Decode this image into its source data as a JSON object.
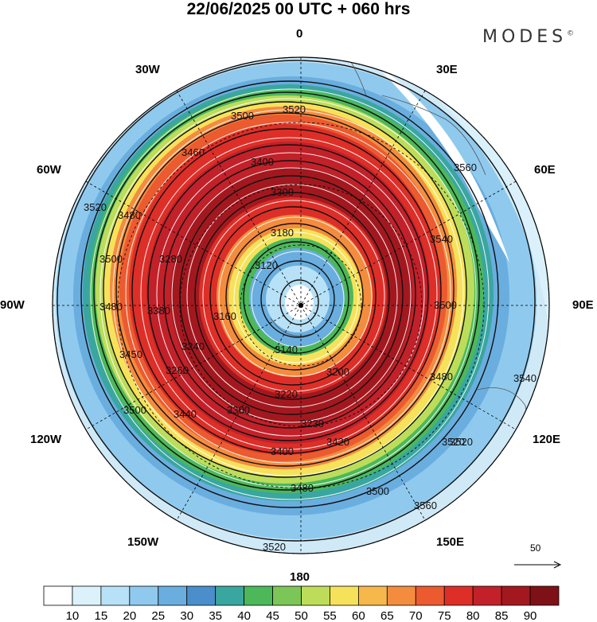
{
  "title": "22/06/2025  00 UTC  + 060 hrs",
  "brand": "MODES",
  "brand_mark": "©",
  "longitude_labels": {
    "lon_0": "0",
    "lon_30e": "30E",
    "lon_60e": "60E",
    "lon_90e": "90E",
    "lon_120e": "120E",
    "lon_150e": "150E",
    "lon_180": "180",
    "lon_150w": "150W",
    "lon_120w": "120W",
    "lon_90w": "90W",
    "lon_60w": "60W",
    "lon_30w": "30W"
  },
  "contour_labels": [
    "3520",
    "3500",
    "3460",
    "3400",
    "3300",
    "3180",
    "3120",
    "3160",
    "3140",
    "3200",
    "3220",
    "3300",
    "3230",
    "3400",
    "3420",
    "3480",
    "3500",
    "3520",
    "3540",
    "3560",
    "3540",
    "3500",
    "3480",
    "3520",
    "3500",
    "3440",
    "3380",
    "3280",
    "3240",
    "3260",
    "3450",
    "3520",
    "3500",
    "3480",
    "3480",
    "3560",
    "3520"
  ],
  "vector_scale": {
    "value": "50"
  },
  "colorbar": {
    "labels": [
      "10",
      "15",
      "20",
      "25",
      "30",
      "35",
      "40",
      "45",
      "50",
      "55",
      "60",
      "65",
      "70",
      "75",
      "80",
      "85",
      "90"
    ],
    "colors": [
      "#ffffff",
      "#dcf2fb",
      "#b7e1f6",
      "#8fcaee",
      "#6aaedf",
      "#4a8fcb",
      "#3aa6a0",
      "#4cb85a",
      "#7cc657",
      "#bddd5a",
      "#f6e25a",
      "#f7b84b",
      "#f48c3e",
      "#ec5a30",
      "#dd2f28",
      "#c2212a",
      "#a3181f",
      "#7e1115"
    ]
  },
  "wind_speed_colors": {
    "ring_outer": "#b7e1f6",
    "ring_mid": "#6aaedf",
    "green": "#4cb85a",
    "yellow": "#f6e25a",
    "orange": "#f48c3e",
    "red": "#dd2f28",
    "darkred": "#a3181f"
  }
}
